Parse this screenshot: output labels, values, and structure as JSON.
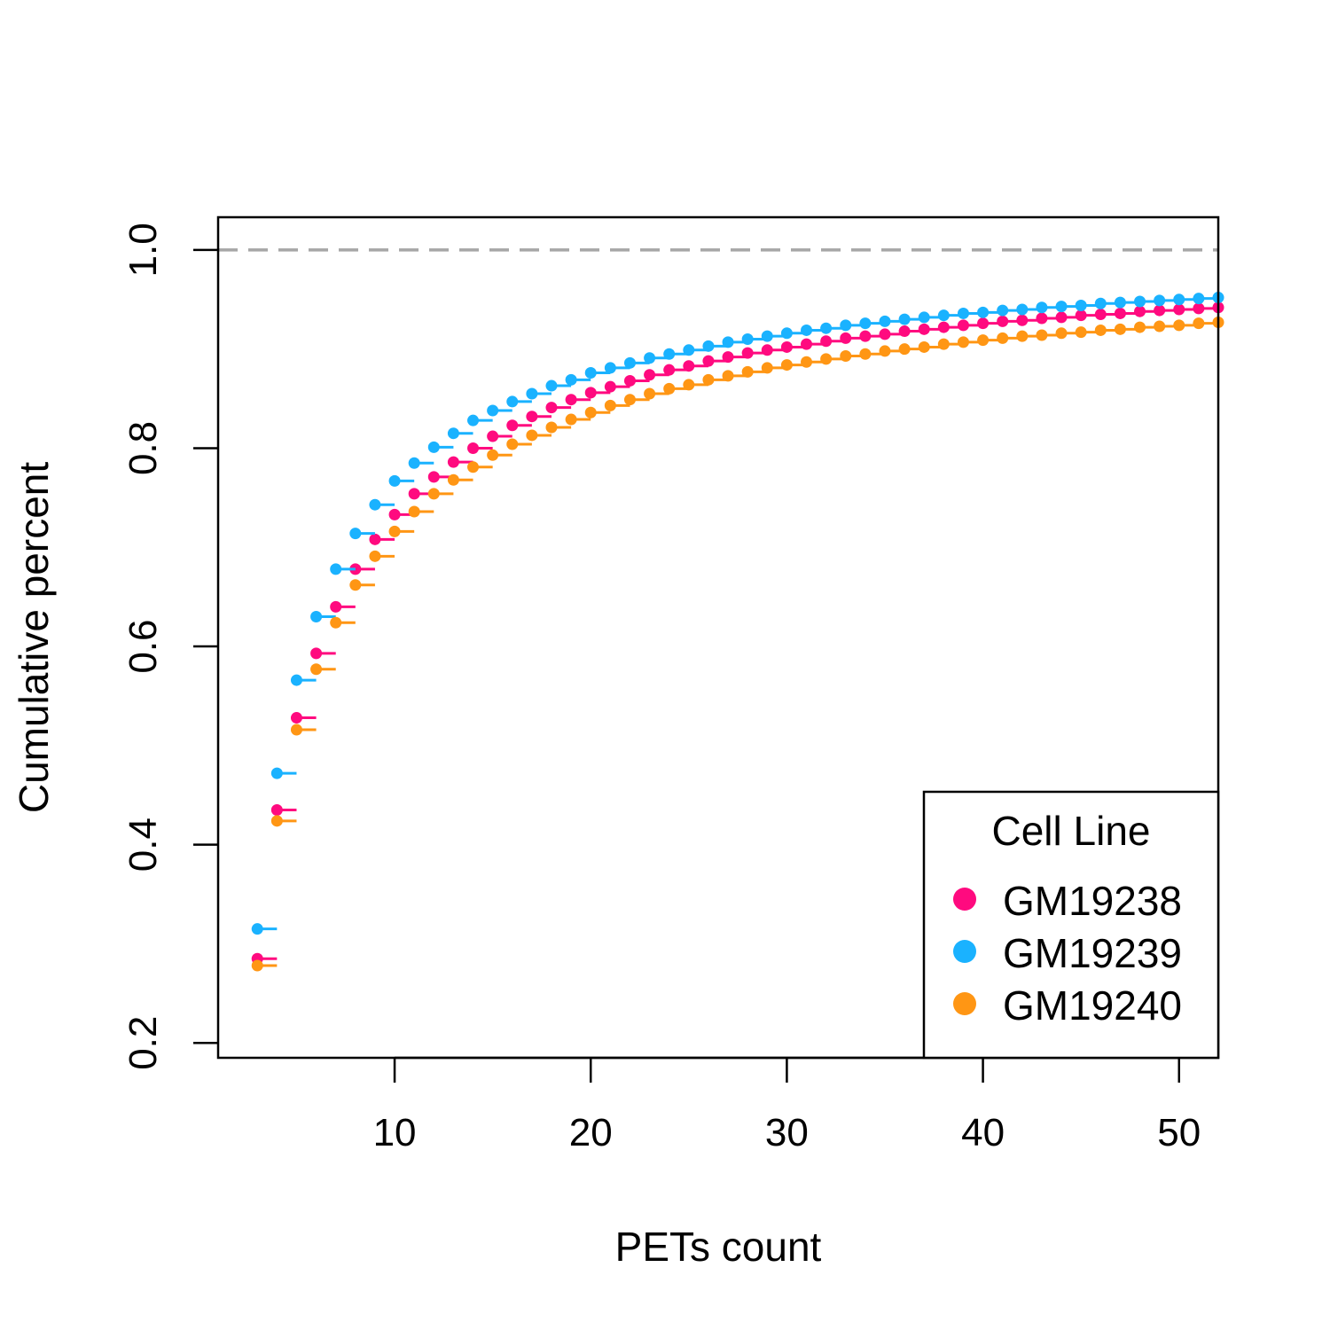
{
  "chart_data": {
    "type": "scatter",
    "title": "",
    "xlabel": "PETs count",
    "ylabel": "Cumulative percent",
    "xlim": [
      1,
      52
    ],
    "ylim": [
      0.185,
      1.033
    ],
    "x_ticks": [
      10,
      20,
      30,
      40,
      50
    ],
    "x_tick_labels": [
      "10",
      "20",
      "30",
      "40",
      "50"
    ],
    "y_ticks": [
      0.2,
      0.4,
      0.6,
      0.8,
      1.0
    ],
    "y_tick_labels": [
      "0.2",
      "0.4",
      "0.6",
      "0.8",
      "1.0"
    ],
    "reference_line": {
      "y": 1.0,
      "style": "dashed",
      "color": "#A6A6A6"
    },
    "step_style": "ecdf",
    "legend": {
      "title": "Cell Line",
      "placement": "bottom-right"
    },
    "x": [
      3,
      4,
      5,
      6,
      7,
      8,
      9,
      10,
      11,
      12,
      13,
      14,
      15,
      16,
      17,
      18,
      19,
      20,
      21,
      22,
      23,
      24,
      25,
      26,
      27,
      28,
      29,
      30,
      31,
      32,
      33,
      34,
      35,
      36,
      37,
      38,
      39,
      40,
      41,
      42,
      43,
      44,
      45,
      46,
      47,
      48,
      49,
      50,
      51,
      52
    ],
    "series": [
      {
        "name": "GM19238",
        "color": "#FF0A7F",
        "values": [
          0.285,
          0.435,
          0.528,
          0.593,
          0.64,
          0.678,
          0.708,
          0.733,
          0.754,
          0.771,
          0.786,
          0.8,
          0.812,
          0.823,
          0.832,
          0.841,
          0.849,
          0.856,
          0.862,
          0.868,
          0.874,
          0.879,
          0.883,
          0.888,
          0.892,
          0.896,
          0.899,
          0.902,
          0.905,
          0.908,
          0.911,
          0.913,
          0.915,
          0.918,
          0.92,
          0.922,
          0.924,
          0.926,
          0.928,
          0.929,
          0.931,
          0.932,
          0.934,
          0.935,
          0.936,
          0.938,
          0.939,
          0.94,
          0.941,
          0.942
        ]
      },
      {
        "name": "GM19239",
        "color": "#1AB2FF",
        "values": [
          0.315,
          0.472,
          0.566,
          0.63,
          0.678,
          0.714,
          0.743,
          0.767,
          0.785,
          0.801,
          0.815,
          0.828,
          0.838,
          0.847,
          0.855,
          0.863,
          0.869,
          0.876,
          0.881,
          0.886,
          0.891,
          0.895,
          0.899,
          0.903,
          0.907,
          0.91,
          0.913,
          0.916,
          0.919,
          0.921,
          0.924,
          0.926,
          0.928,
          0.93,
          0.932,
          0.934,
          0.936,
          0.937,
          0.939,
          0.94,
          0.942,
          0.943,
          0.944,
          0.946,
          0.947,
          0.948,
          0.949,
          0.95,
          0.951,
          0.952
        ]
      },
      {
        "name": "GM19240",
        "color": "#FF9614",
        "values": [
          0.278,
          0.424,
          0.516,
          0.577,
          0.624,
          0.662,
          0.691,
          0.716,
          0.736,
          0.754,
          0.768,
          0.781,
          0.793,
          0.804,
          0.813,
          0.821,
          0.829,
          0.836,
          0.843,
          0.849,
          0.855,
          0.86,
          0.864,
          0.869,
          0.873,
          0.877,
          0.881,
          0.884,
          0.887,
          0.89,
          0.893,
          0.895,
          0.898,
          0.9,
          0.902,
          0.905,
          0.907,
          0.909,
          0.911,
          0.913,
          0.914,
          0.916,
          0.917,
          0.919,
          0.92,
          0.922,
          0.923,
          0.924,
          0.926,
          0.927
        ]
      }
    ]
  }
}
